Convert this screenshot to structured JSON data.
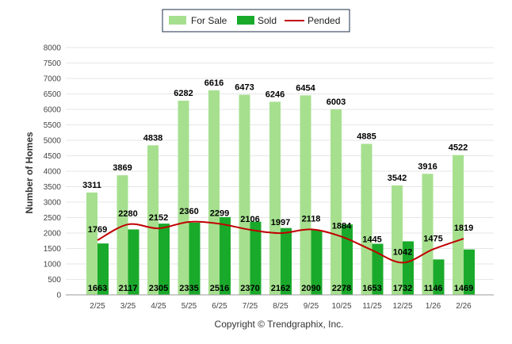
{
  "colors": {
    "for_sale": "#a6e08f",
    "sold": "#1aaa2b",
    "pended": "#c00000",
    "grid": "#e6e6e6",
    "axis": "#999999"
  },
  "copyright": "Copyright © Trendgraphix, Inc.",
  "chart_data": {
    "type": "bar",
    "title": "",
    "xlabel": "",
    "ylabel": "Number of Homes",
    "ylim": [
      0,
      8000
    ],
    "yticks": [
      0,
      500,
      1000,
      1500,
      2000,
      2500,
      3000,
      3500,
      4000,
      4500,
      5000,
      5500,
      6000,
      6500,
      7000,
      7500,
      8000
    ],
    "grid": true,
    "legend_position": "top-center",
    "categories": [
      "2/25",
      "3/25",
      "4/25",
      "5/25",
      "6/25",
      "7/25",
      "8/25",
      "9/25",
      "10/25",
      "11/25",
      "12/25",
      "1/26",
      "2/26"
    ],
    "series": [
      {
        "name": "For Sale",
        "type": "bar",
        "values": [
          3311,
          3869,
          4838,
          6282,
          6616,
          6473,
          6246,
          6454,
          6003,
          4885,
          3542,
          3916,
          4522
        ]
      },
      {
        "name": "Sold",
        "type": "bar",
        "values": [
          1663,
          2117,
          2305,
          2335,
          2516,
          2370,
          2162,
          2090,
          2278,
          1653,
          1732,
          1146,
          1469
        ]
      },
      {
        "name": "Pended",
        "type": "line",
        "values": [
          1769,
          2280,
          2152,
          2360,
          2299,
          2106,
          1997,
          2118,
          1884,
          1445,
          1042,
          1475,
          1819
        ]
      }
    ]
  }
}
